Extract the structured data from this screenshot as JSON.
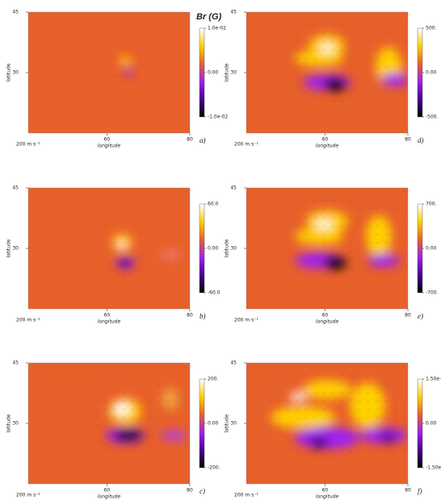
{
  "chart_data": [
    {
      "type": "heatmap",
      "title": "Br (G)",
      "label": "a)",
      "xlabel": "longitude",
      "ylabel": "latitude",
      "vector_key": "200 m s⁻¹",
      "xlim": [
        41,
        80
      ],
      "ylim": [
        15,
        45
      ],
      "xticks": [
        60,
        80
      ],
      "yticks": [
        30,
        45
      ],
      "zlim": [
        -0.01,
        0.01
      ],
      "zticks": [
        {
          "value": 0.01,
          "label": "1.0e-02"
        },
        {
          "value": 0,
          "label": "0.00"
        },
        {
          "value": -0.01,
          "label": "-1.0e-02"
        }
      ],
      "colormap": [
        "#000000",
        "#4a0090",
        "#a020f0",
        "#e8602a",
        "#ffd000",
        "#ffffff"
      ]
    },
    {
      "type": "heatmap",
      "label": "b)",
      "xlabel": "longitude",
      "ylabel": "latitude",
      "vector_key": "200 m s⁻¹",
      "xlim": [
        41,
        80
      ],
      "ylim": [
        15,
        45
      ],
      "xticks": [
        60,
        80
      ],
      "yticks": [
        30,
        45
      ],
      "zlim": [
        -60,
        60
      ],
      "zticks": [
        {
          "value": 60,
          "label": "60.0"
        },
        {
          "value": 0,
          "label": "0.00"
        },
        {
          "value": -60,
          "label": "-60.0"
        }
      ],
      "colormap": [
        "#000000",
        "#4a0090",
        "#a020f0",
        "#e8602a",
        "#ffd000",
        "#ffffff"
      ]
    },
    {
      "type": "heatmap",
      "label": "c)",
      "xlabel": "longitude",
      "ylabel": "latitude",
      "vector_key": "200 m s⁻¹",
      "xlim": [
        41,
        80
      ],
      "ylim": [
        15,
        45
      ],
      "xticks": [
        60,
        80
      ],
      "yticks": [
        30,
        45
      ],
      "zlim": [
        -200,
        200
      ],
      "zticks": [
        {
          "value": 200,
          "label": "200."
        },
        {
          "value": 0,
          "label": "0.00"
        },
        {
          "value": -200,
          "label": "-200."
        }
      ],
      "colormap": [
        "#000000",
        "#4a0090",
        "#a020f0",
        "#e8602a",
        "#ffd000",
        "#ffffff"
      ]
    },
    {
      "type": "heatmap",
      "label": "d)",
      "xlabel": "longitude",
      "ylabel": "latitude",
      "vector_key": "200 m s⁻¹",
      "xlim": [
        41,
        80
      ],
      "ylim": [
        15,
        45
      ],
      "xticks": [
        60,
        80
      ],
      "yticks": [
        30,
        45
      ],
      "zlim": [
        -500,
        500
      ],
      "zticks": [
        {
          "value": 500,
          "label": "500."
        },
        {
          "value": 0,
          "label": "0.00"
        },
        {
          "value": -500,
          "label": "-500."
        }
      ],
      "colormap": [
        "#000000",
        "#4a0090",
        "#a020f0",
        "#e8602a",
        "#ffd000",
        "#ffffff"
      ]
    },
    {
      "type": "heatmap",
      "label": "e)",
      "xlabel": "longitude",
      "ylabel": "latitude",
      "vector_key": "200 m s⁻¹",
      "xlim": [
        41,
        80
      ],
      "ylim": [
        15,
        45
      ],
      "xticks": [
        60,
        80
      ],
      "yticks": [
        30,
        45
      ],
      "zlim": [
        -700,
        700
      ],
      "zticks": [
        {
          "value": 700,
          "label": "700."
        },
        {
          "value": 0,
          "label": "0.00"
        },
        {
          "value": -700,
          "label": "-700."
        }
      ],
      "colormap": [
        "#000000",
        "#4a0090",
        "#a020f0",
        "#e8602a",
        "#ffd000",
        "#ffffff"
      ]
    },
    {
      "type": "heatmap",
      "label": "f)",
      "xlabel": "longitude",
      "ylabel": "latitude",
      "vector_key": "200 m s⁻¹",
      "xlim": [
        41,
        80
      ],
      "ylim": [
        15,
        45
      ],
      "xticks": [
        60,
        80
      ],
      "yticks": [
        30,
        45
      ],
      "zlim": [
        -1500,
        1500
      ],
      "zticks": [
        {
          "value": 1500,
          "label": "1.50e+03"
        },
        {
          "value": 0,
          "label": "0.00"
        },
        {
          "value": -1500,
          "label": "-1.50e+03"
        }
      ],
      "colormap": [
        "#000000",
        "#4a0090",
        "#a020f0",
        "#e8602a",
        "#ffd000",
        "#ffffff"
      ]
    }
  ]
}
